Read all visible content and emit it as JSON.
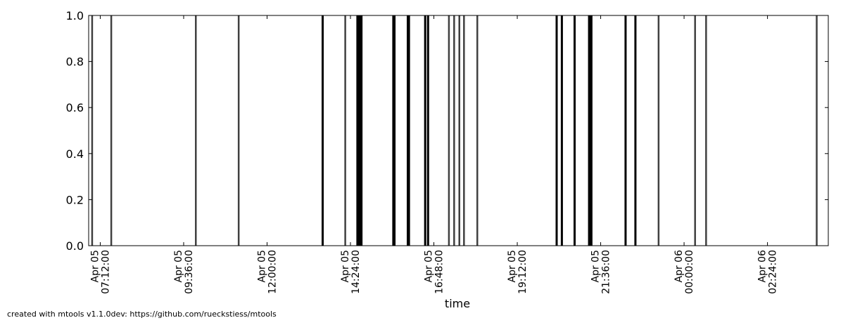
{
  "chart_data": {
    "type": "event_timeline",
    "xlabel": "time",
    "ylabel": "",
    "ylim": [
      0.0,
      1.0
    ],
    "y_ticks": [
      "0.0",
      "0.2",
      "0.4",
      "0.6",
      "0.8",
      "1.0"
    ],
    "x_range": [
      "2015-04-05T06:52:00",
      "2015-04-06T04:09:00"
    ],
    "x_ticks": [
      {
        "value": "2015-04-05T07:12:00",
        "line1": "Apr 05",
        "line2": "07:12:00"
      },
      {
        "value": "2015-04-05T09:36:00",
        "line1": "Apr 05",
        "line2": "09:36:00"
      },
      {
        "value": "2015-04-05T12:00:00",
        "line1": "Apr 05",
        "line2": "12:00:00"
      },
      {
        "value": "2015-04-05T14:24:00",
        "line1": "Apr 05",
        "line2": "14:24:00"
      },
      {
        "value": "2015-04-05T16:48:00",
        "line1": "Apr 05",
        "line2": "16:48:00"
      },
      {
        "value": "2015-04-05T19:12:00",
        "line1": "Apr 05",
        "line2": "19:12:00"
      },
      {
        "value": "2015-04-05T21:36:00",
        "line1": "Apr 05",
        "line2": "21:36:00"
      },
      {
        "value": "2015-04-06T00:00:00",
        "line1": "Apr 06",
        "line2": "00:00:00"
      },
      {
        "value": "2015-04-06T02:24:00",
        "line1": "Apr 06",
        "line2": "02:24:00"
      }
    ],
    "events": [
      {
        "time": "2015-04-05T06:58:00",
        "emphasis": "medium"
      },
      {
        "time": "2015-04-05T07:31:00",
        "emphasis": "medium"
      },
      {
        "time": "2015-04-05T09:57:00",
        "emphasis": "medium"
      },
      {
        "time": "2015-04-05T11:11:00",
        "emphasis": "medium"
      },
      {
        "time": "2015-04-05T13:36:00",
        "emphasis": "strong"
      },
      {
        "time": "2015-04-05T14:15:00",
        "emphasis": "medium"
      },
      {
        "time": "2015-04-05T14:36:00",
        "emphasis": "strong"
      },
      {
        "time": "2015-04-05T14:37:00",
        "emphasis": "strong"
      },
      {
        "time": "2015-04-05T14:38:00",
        "emphasis": "strong"
      },
      {
        "time": "2015-04-05T14:39:00",
        "emphasis": "strong"
      },
      {
        "time": "2015-04-05T14:40:00",
        "emphasis": "strong"
      },
      {
        "time": "2015-04-05T14:41:00",
        "emphasis": "strong"
      },
      {
        "time": "2015-04-05T14:42:00",
        "emphasis": "strong"
      },
      {
        "time": "2015-04-05T14:43:00",
        "emphasis": "strong"
      },
      {
        "time": "2015-04-05T15:38:00",
        "emphasis": "strong"
      },
      {
        "time": "2015-04-05T15:39:00",
        "emphasis": "strong"
      },
      {
        "time": "2015-04-05T15:40:00",
        "emphasis": "strong"
      },
      {
        "time": "2015-04-05T16:03:00",
        "emphasis": "strong"
      },
      {
        "time": "2015-04-05T16:04:00",
        "emphasis": "strong"
      },
      {
        "time": "2015-04-05T16:05:00",
        "emphasis": "strong"
      },
      {
        "time": "2015-04-05T16:33:00",
        "emphasis": "strong"
      },
      {
        "time": "2015-04-05T16:38:00",
        "emphasis": "strong"
      },
      {
        "time": "2015-04-05T17:14:00",
        "emphasis": "medium"
      },
      {
        "time": "2015-04-05T17:23:00",
        "emphasis": "medium"
      },
      {
        "time": "2015-04-05T17:32:00",
        "emphasis": "medium"
      },
      {
        "time": "2015-04-05T17:40:00",
        "emphasis": "medium"
      },
      {
        "time": "2015-04-05T18:03:00",
        "emphasis": "medium"
      },
      {
        "time": "2015-04-05T20:20:00",
        "emphasis": "strong"
      },
      {
        "time": "2015-04-05T20:29:00",
        "emphasis": "strong"
      },
      {
        "time": "2015-04-05T20:51:00",
        "emphasis": "strong"
      },
      {
        "time": "2015-04-05T21:16:00",
        "emphasis": "strong"
      },
      {
        "time": "2015-04-05T21:17:00",
        "emphasis": "strong"
      },
      {
        "time": "2015-04-05T21:18:00",
        "emphasis": "strong"
      },
      {
        "time": "2015-04-05T21:20:00",
        "emphasis": "strong"
      },
      {
        "time": "2015-04-05T22:19:00",
        "emphasis": "strong"
      },
      {
        "time": "2015-04-05T22:36:00",
        "emphasis": "strong"
      },
      {
        "time": "2015-04-05T23:16:00",
        "emphasis": "medium"
      },
      {
        "time": "2015-04-06T00:19:00",
        "emphasis": "medium"
      },
      {
        "time": "2015-04-06T00:38:00",
        "emphasis": "medium"
      },
      {
        "time": "2015-04-06T03:49:00",
        "emphasis": "medium"
      }
    ],
    "grid": false,
    "colors": {
      "strong": "#000000",
      "medium": "#404040",
      "axis": "#000000"
    }
  },
  "footer": {
    "text": "created with mtools v1.1.0dev: https://github.com/rueckstiess/mtools"
  }
}
